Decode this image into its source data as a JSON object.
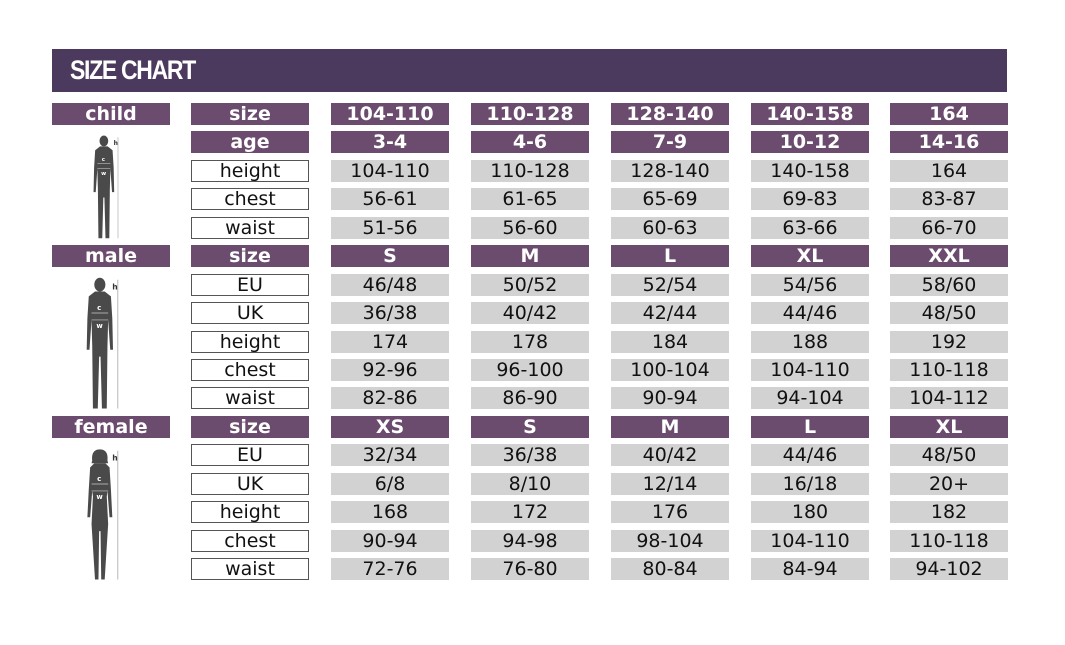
{
  "title": "SIZE CHART",
  "colors": {
    "title_bar": "#4b3a5e",
    "header_cell": "#6b4c6e",
    "value_cell": "#d2d2d2"
  },
  "sections": [
    {
      "name": "child",
      "icon": "child-silhouette-icon",
      "rows": [
        {
          "label": "size",
          "header": true,
          "values": [
            "104-110",
            "110-128",
            "128-140",
            "140-158",
            "164"
          ]
        },
        {
          "label": "age",
          "header": true,
          "values": [
            "3-4",
            "4-6",
            "7-9",
            "10-12",
            "14-16"
          ]
        },
        {
          "label": "height",
          "values": [
            "104-110",
            "110-128",
            "128-140",
            "140-158",
            "164"
          ]
        },
        {
          "label": "chest",
          "values": [
            "56-61",
            "61-65",
            "65-69",
            "69-83",
            "83-87"
          ]
        },
        {
          "label": "waist",
          "values": [
            "51-56",
            "56-60",
            "60-63",
            "63-66",
            "66-70"
          ]
        }
      ]
    },
    {
      "name": "male",
      "icon": "male-silhouette-icon",
      "rows": [
        {
          "label": "size",
          "header": true,
          "values": [
            "S",
            "M",
            "L",
            "XL",
            "XXL"
          ]
        },
        {
          "label": "EU",
          "values": [
            "46/48",
            "50/52",
            "52/54",
            "54/56",
            "58/60"
          ]
        },
        {
          "label": "UK",
          "values": [
            "36/38",
            "40/42",
            "42/44",
            "44/46",
            "48/50"
          ]
        },
        {
          "label": "height",
          "values": [
            "174",
            "178",
            "184",
            "188",
            "192"
          ]
        },
        {
          "label": "chest",
          "values": [
            "92-96",
            "96-100",
            "100-104",
            "104-110",
            "110-118"
          ]
        },
        {
          "label": "waist",
          "values": [
            "82-86",
            "86-90",
            "90-94",
            "94-104",
            "104-112"
          ]
        }
      ]
    },
    {
      "name": "female",
      "icon": "female-silhouette-icon",
      "rows": [
        {
          "label": "size",
          "header": true,
          "values": [
            "XS",
            "S",
            "M",
            "L",
            "XL"
          ]
        },
        {
          "label": "EU",
          "values": [
            "32/34",
            "36/38",
            "40/42",
            "44/46",
            "48/50"
          ]
        },
        {
          "label": "UK",
          "values": [
            "6/8",
            "8/10",
            "12/14",
            "16/18",
            "20+"
          ]
        },
        {
          "label": "height",
          "values": [
            "168",
            "172",
            "176",
            "180",
            "182"
          ]
        },
        {
          "label": "chest",
          "values": [
            "90-94",
            "94-98",
            "98-104",
            "104-110",
            "110-118"
          ]
        },
        {
          "label": "waist",
          "values": [
            "72-76",
            "76-80",
            "80-84",
            "84-94",
            "94-102"
          ]
        }
      ]
    }
  ],
  "figure_marks": {
    "h": "h",
    "c": "c",
    "w": "w"
  }
}
